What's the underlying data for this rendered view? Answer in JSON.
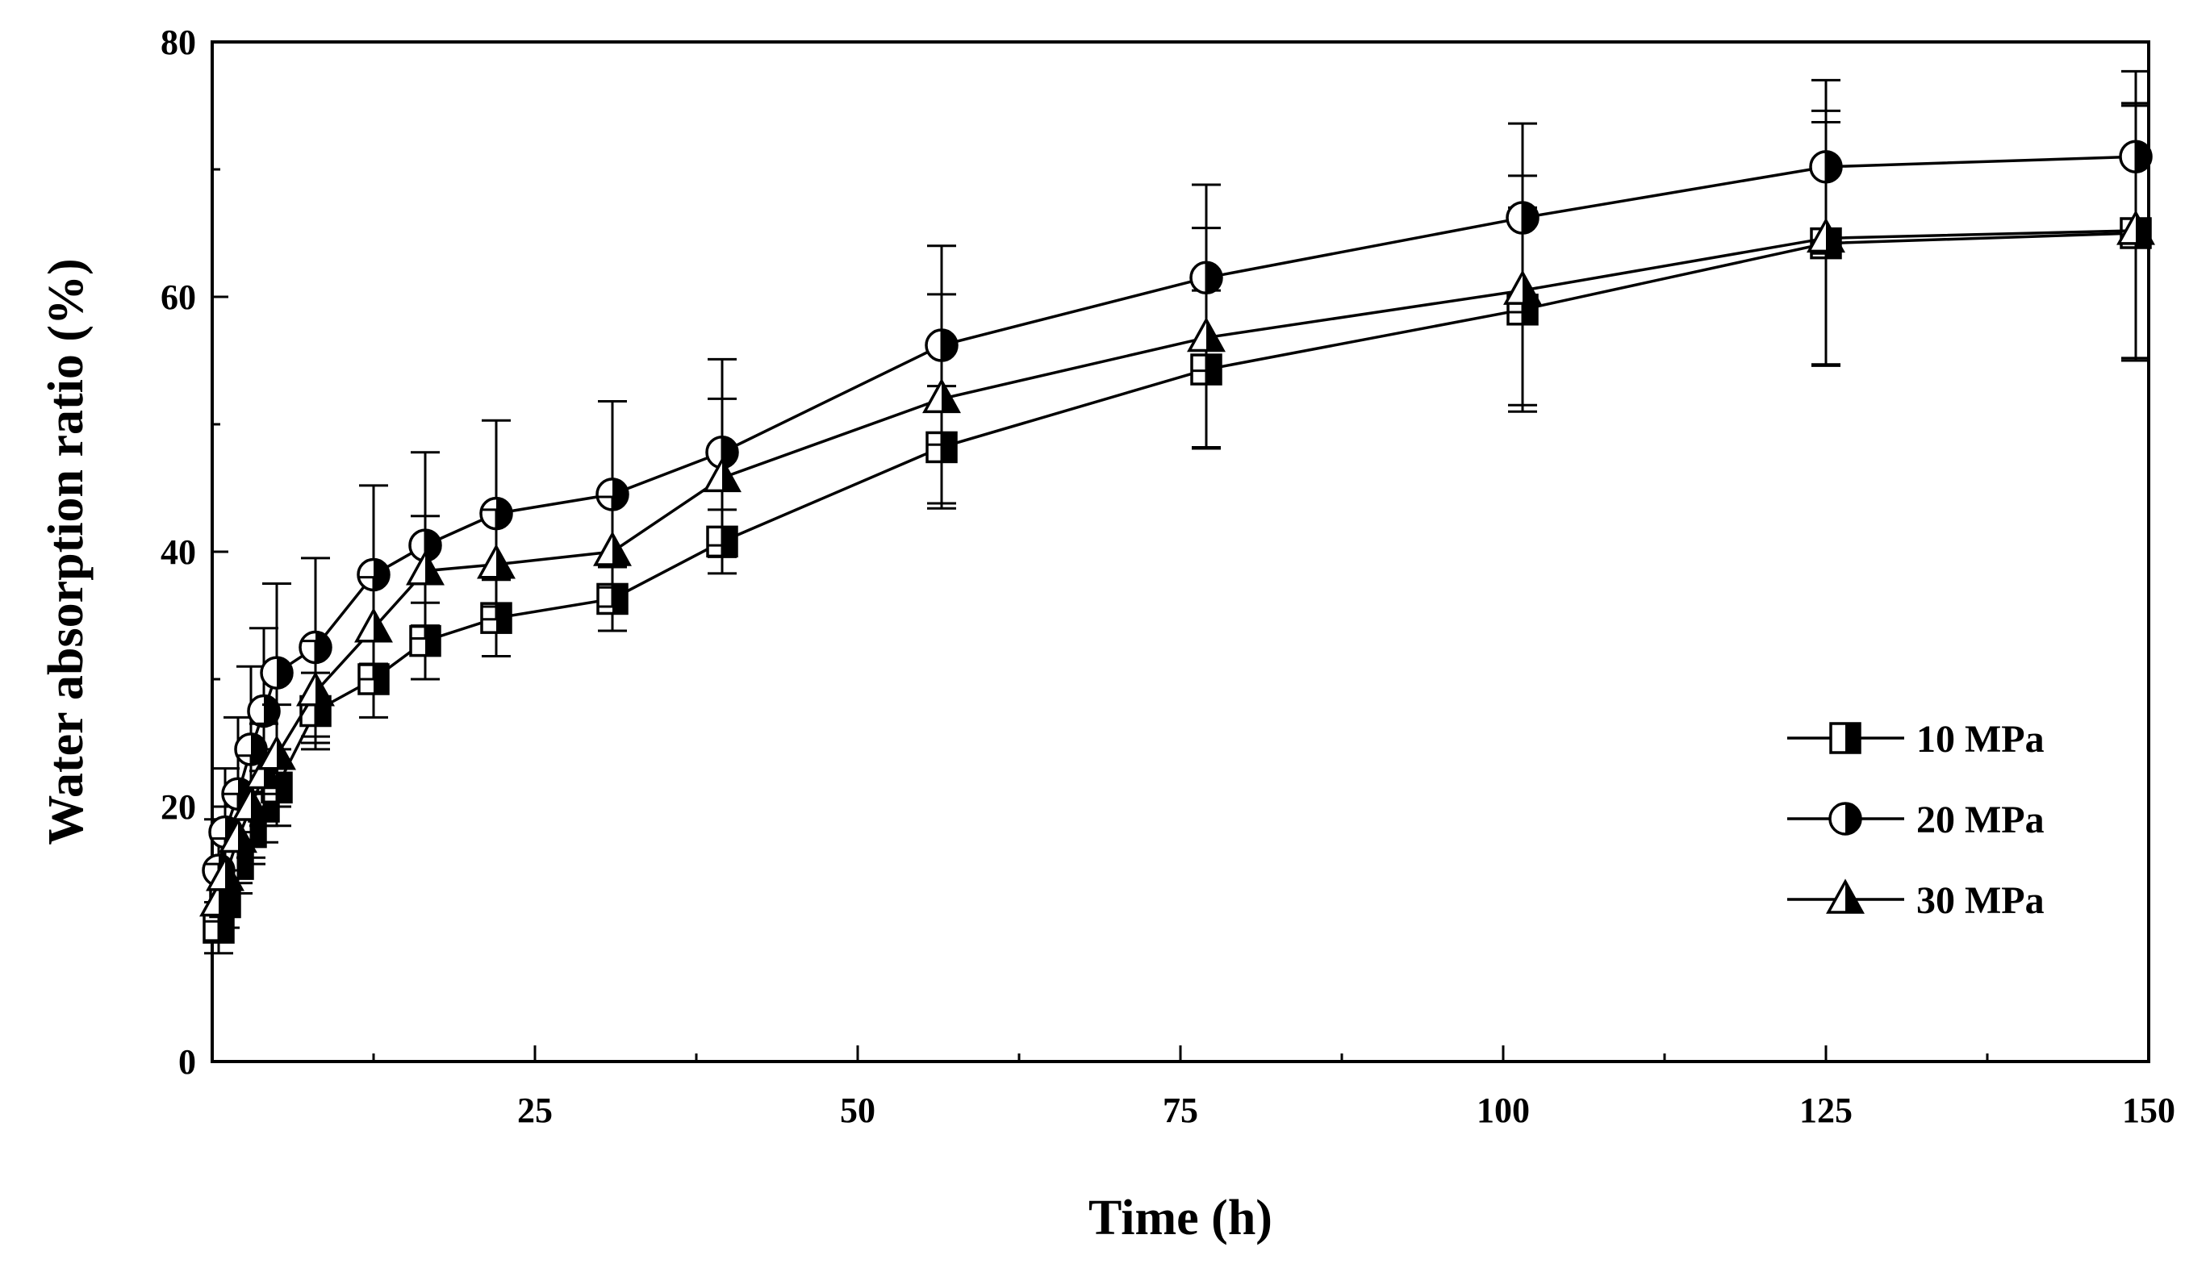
{
  "chart_data": {
    "type": "line",
    "title": "",
    "xlabel": "Time (h)",
    "ylabel": "Water absorption ratio (%)",
    "xlim": [
      0,
      150
    ],
    "ylim": [
      0,
      80
    ],
    "xticks": [
      25,
      50,
      75,
      100,
      125,
      150
    ],
    "xtick_labels": [
      "25",
      "50",
      "75",
      "100",
      "125",
      "150"
    ],
    "yticks": [
      0,
      20,
      40,
      60,
      80
    ],
    "ytick_labels": [
      "0",
      "20",
      "40",
      "60",
      "80"
    ],
    "grid": false,
    "legend_position": "bottom-right",
    "series": [
      {
        "name": "10 MPa",
        "marker": "half-filled-square",
        "x": [
          0.5,
          1,
          2,
          3,
          4,
          5,
          8,
          12.5,
          16.5,
          22,
          31,
          39.5,
          56.5,
          77,
          101.5,
          125,
          149
        ],
        "y": [
          10.5,
          12.5,
          15.5,
          18.0,
          20.0,
          21.5,
          27.5,
          30.0,
          33.0,
          34.8,
          36.3,
          40.8,
          48.2,
          54.3,
          59.0,
          64.2,
          65.0
        ],
        "error": [
          2.0,
          2.0,
          2.3,
          2.5,
          2.8,
          3.0,
          3.0,
          3.0,
          3.0,
          3.0,
          2.5,
          2.5,
          4.8,
          6.2,
          8.0,
          9.5,
          10.0
        ]
      },
      {
        "name": "20 MPa",
        "marker": "half-filled-circle",
        "x": [
          0.5,
          1,
          2,
          3,
          4,
          5,
          8,
          12.5,
          16.5,
          22,
          31,
          39.5,
          56.5,
          77,
          101.5,
          125,
          149
        ],
        "y": [
          15.0,
          18.0,
          21.0,
          24.5,
          27.5,
          30.5,
          32.5,
          38.2,
          40.5,
          43.0,
          44.5,
          47.8,
          56.2,
          61.5,
          66.2,
          70.2,
          71.0
        ],
        "error": [
          4.0,
          5.0,
          6.0,
          6.5,
          6.5,
          7.0,
          7.0,
          7.0,
          7.3,
          7.3,
          7.3,
          7.3,
          7.8,
          7.3,
          7.4,
          6.8,
          6.7
        ]
      },
      {
        "name": "30 MPa",
        "marker": "half-filled-triangle",
        "x": [
          0.5,
          1,
          2,
          3,
          4,
          5,
          8,
          12.5,
          16.5,
          22,
          31,
          39.5,
          56.5,
          77,
          101.5,
          125,
          149
        ],
        "y": [
          12.5,
          14.5,
          17.5,
          20.0,
          22.5,
          24.0,
          29.0,
          34.0,
          38.5,
          39.0,
          40.0,
          45.8,
          52.0,
          56.8,
          60.5,
          64.6,
          65.2
        ],
        "error": [
          3.0,
          3.0,
          3.5,
          4.0,
          4.0,
          4.0,
          4.0,
          4.0,
          4.3,
          4.3,
          4.3,
          6.2,
          8.2,
          8.6,
          9.0,
          10.0,
          10.0
        ]
      }
    ]
  }
}
